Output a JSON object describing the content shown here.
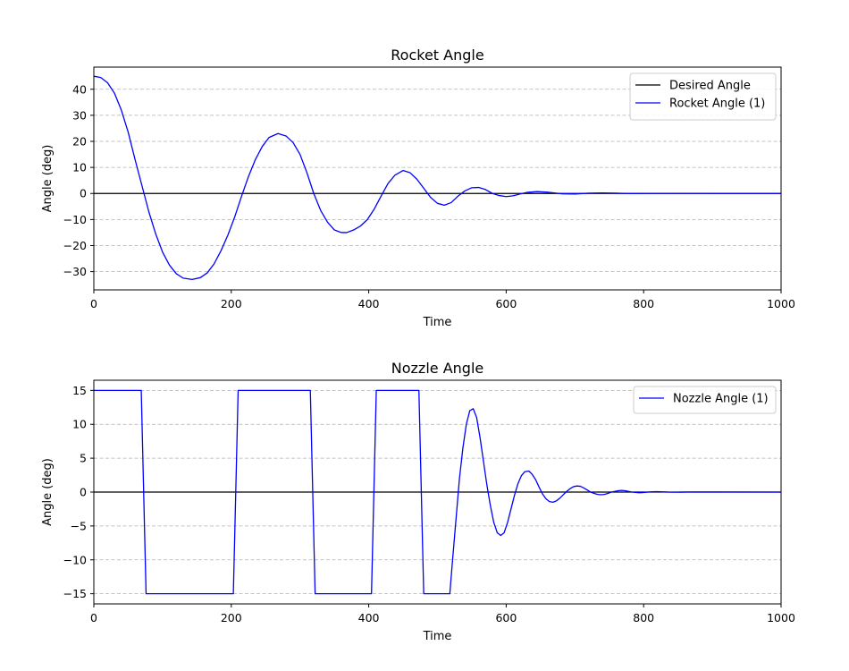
{
  "chart_data": [
    {
      "type": "line",
      "title": "Rocket Angle",
      "xlabel": "Time",
      "ylabel": "Angle (deg)",
      "xlim": [
        0,
        1000
      ],
      "ylim": [
        -37,
        48.5
      ],
      "xticks": [
        0,
        200,
        400,
        600,
        800,
        1000
      ],
      "yticks": [
        -30,
        -20,
        -10,
        0,
        10,
        20,
        30,
        40
      ],
      "grid": "y-dashed",
      "legend_position": "top-right",
      "series": [
        {
          "name": "Desired Angle",
          "color": "#000000",
          "points": [
            [
              0,
              0
            ],
            [
              1000,
              0
            ]
          ]
        },
        {
          "name": "Rocket Angle (1)",
          "color": "#0000ff",
          "points": [
            [
              0,
              45
            ],
            [
              10,
              44.5
            ],
            [
              20,
              42.5
            ],
            [
              30,
              38.5
            ],
            [
              40,
              32
            ],
            [
              50,
              23.5
            ],
            [
              60,
              13
            ],
            [
              70,
              3
            ],
            [
              80,
              -7
            ],
            [
              90,
              -15.5
            ],
            [
              100,
              -22.5
            ],
            [
              110,
              -27.5
            ],
            [
              120,
              -30.8
            ],
            [
              130,
              -32.5
            ],
            [
              143,
              -33
            ],
            [
              155,
              -32.3
            ],
            [
              165,
              -30.5
            ],
            [
              175,
              -27
            ],
            [
              185,
              -22
            ],
            [
              195,
              -16
            ],
            [
              205,
              -9
            ],
            [
              215,
              -1
            ],
            [
              225,
              6.5
            ],
            [
              235,
              13
            ],
            [
              245,
              18
            ],
            [
              255,
              21.5
            ],
            [
              268,
              23
            ],
            [
              280,
              22
            ],
            [
              290,
              19.5
            ],
            [
              300,
              15
            ],
            [
              310,
              8
            ],
            [
              320,
              0
            ],
            [
              330,
              -6.5
            ],
            [
              340,
              -11
            ],
            [
              350,
              -14
            ],
            [
              360,
              -15
            ],
            [
              368,
              -15
            ],
            [
              378,
              -14
            ],
            [
              388,
              -12.5
            ],
            [
              398,
              -10
            ],
            [
              408,
              -6
            ],
            [
              418,
              -1
            ],
            [
              428,
              3.8
            ],
            [
              438,
              7
            ],
            [
              450,
              8.8
            ],
            [
              460,
              8
            ],
            [
              470,
              5.5
            ],
            [
              480,
              2
            ],
            [
              490,
              -1.5
            ],
            [
              500,
              -3.8
            ],
            [
              510,
              -4.5
            ],
            [
              520,
              -3.5
            ],
            [
              530,
              -1
            ],
            [
              540,
              1
            ],
            [
              550,
              2.2
            ],
            [
              560,
              2.3
            ],
            [
              570,
              1.5
            ],
            [
              580,
              0
            ],
            [
              590,
              -0.8
            ],
            [
              600,
              -1.2
            ],
            [
              610,
              -0.9
            ],
            [
              620,
              -0.2
            ],
            [
              630,
              0.4
            ],
            [
              645,
              0.7
            ],
            [
              660,
              0.5
            ],
            [
              680,
              -0.1
            ],
            [
              700,
              -0.2
            ],
            [
              720,
              0.1
            ],
            [
              740,
              0.2
            ],
            [
              760,
              0.1
            ],
            [
              780,
              -0.05
            ],
            [
              800,
              0
            ],
            [
              850,
              0.05
            ],
            [
              900,
              0
            ],
            [
              1000,
              0
            ]
          ]
        }
      ]
    },
    {
      "type": "line",
      "title": "Nozzle Angle",
      "xlabel": "Time",
      "ylabel": "Angle (deg)",
      "xlim": [
        0,
        1000
      ],
      "ylim": [
        -16.5,
        16.5
      ],
      "xticks": [
        0,
        200,
        400,
        600,
        800,
        1000
      ],
      "yticks": [
        -15,
        -10,
        -5,
        0,
        5,
        10,
        15
      ],
      "grid": "y-dashed",
      "legend_position": "top-right",
      "series": [
        {
          "name": "",
          "color": "#000000",
          "points": [
            [
              0,
              0
            ],
            [
              1000,
              0
            ]
          ]
        },
        {
          "name": "Nozzle Angle (1)",
          "color": "#0000ff",
          "points": [
            [
              0,
              15
            ],
            [
              69,
              15
            ],
            [
              76,
              -15
            ],
            [
              203,
              -15
            ],
            [
              210,
              15
            ],
            [
              315,
              15
            ],
            [
              322,
              -15
            ],
            [
              404,
              -15
            ],
            [
              411,
              15
            ],
            [
              473,
              15
            ],
            [
              480,
              -15
            ],
            [
              518,
              -15
            ],
            [
              522,
              -10
            ],
            [
              527,
              -4
            ],
            [
              532,
              2
            ],
            [
              537,
              6.5
            ],
            [
              542,
              10
            ],
            [
              547,
              12
            ],
            [
              552,
              12.3
            ],
            [
              557,
              11
            ],
            [
              562,
              8
            ],
            [
              567,
              4.5
            ],
            [
              572,
              1
            ],
            [
              577,
              -2
            ],
            [
              582,
              -4.5
            ],
            [
              587,
              -6
            ],
            [
              592,
              -6.4
            ],
            [
              597,
              -6
            ],
            [
              602,
              -4.5
            ],
            [
              607,
              -2.5
            ],
            [
              612,
              -0.5
            ],
            [
              617,
              1.2
            ],
            [
              622,
              2.4
            ],
            [
              627,
              3
            ],
            [
              633,
              3.1
            ],
            [
              638,
              2.6
            ],
            [
              643,
              1.8
            ],
            [
              648,
              0.7
            ],
            [
              653,
              -0.3
            ],
            [
              658,
              -1
            ],
            [
              663,
              -1.4
            ],
            [
              668,
              -1.5
            ],
            [
              673,
              -1.3
            ],
            [
              678,
              -0.9
            ],
            [
              683,
              -0.4
            ],
            [
              688,
              0.1
            ],
            [
              693,
              0.5
            ],
            [
              698,
              0.8
            ],
            [
              703,
              0.9
            ],
            [
              708,
              0.85
            ],
            [
              713,
              0.6
            ],
            [
              718,
              0.3
            ],
            [
              723,
              0
            ],
            [
              728,
              -0.2
            ],
            [
              733,
              -0.35
            ],
            [
              738,
              -0.4
            ],
            [
              743,
              -0.35
            ],
            [
              748,
              -0.2
            ],
            [
              753,
              0
            ],
            [
              758,
              0.1
            ],
            [
              763,
              0.2
            ],
            [
              768,
              0.25
            ],
            [
              773,
              0.2
            ],
            [
              778,
              0.1
            ],
            [
              783,
              0
            ],
            [
              788,
              -0.05
            ],
            [
              793,
              -0.1
            ],
            [
              798,
              -0.08
            ],
            [
              803,
              -0.03
            ],
            [
              810,
              0.03
            ],
            [
              818,
              0.07
            ],
            [
              825,
              0.04
            ],
            [
              835,
              0
            ],
            [
              850,
              -0.02
            ],
            [
              870,
              0.02
            ],
            [
              900,
              0.01
            ],
            [
              1000,
              0
            ]
          ]
        }
      ]
    }
  ]
}
